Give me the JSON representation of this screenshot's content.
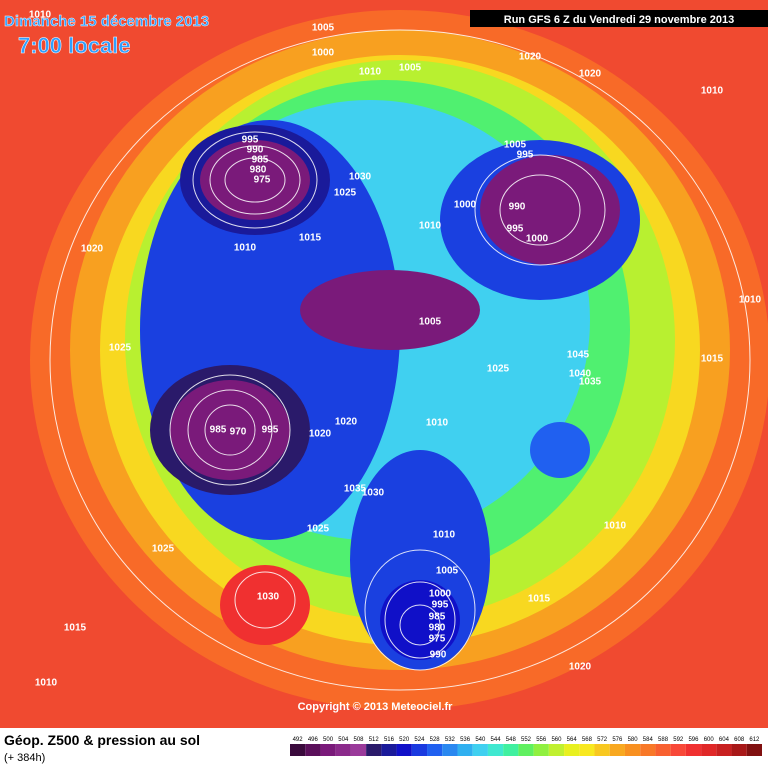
{
  "header": {
    "date": "Dimanche 15 décembre 2013",
    "time": "7:00 locale",
    "run": "Run GFS 6 Z du Vendredi 29 novembre 2013"
  },
  "copyright": "Copyright © 2013 Meteociel.fr",
  "footer": {
    "title": "Géop. Z500 & pression au sol",
    "lead": "(+ 384h)"
  },
  "colorbar": {
    "values": [
      492,
      496,
      500,
      504,
      508,
      512,
      516,
      520,
      524,
      528,
      532,
      536,
      540,
      544,
      548,
      552,
      556,
      560,
      564,
      568,
      572,
      576,
      580,
      584,
      588,
      592,
      596,
      600,
      604,
      608,
      612
    ],
    "colors": [
      "#3a0a3c",
      "#5a0f5a",
      "#7a1a7a",
      "#8b2a8b",
      "#9a3a9a",
      "#2a1a6a",
      "#1a1a9a",
      "#1010c8",
      "#1a3ae0",
      "#2060f0",
      "#2a88f0",
      "#30b0f0",
      "#40d0f0",
      "#40e8d0",
      "#40f0a0",
      "#60f060",
      "#90f040",
      "#c0f030",
      "#e8f020",
      "#f8e820",
      "#f8c820",
      "#f8a820",
      "#f89020",
      "#f87828",
      "#f86030",
      "#f84838",
      "#f03030",
      "#e02828",
      "#c82020",
      "#a81818",
      "#801010"
    ]
  },
  "isobars": [
    1010,
    1005,
    1000,
    1010,
    1005,
    1020,
    1020,
    1010,
    995,
    990,
    985,
    980,
    975,
    1030,
    1025,
    1005,
    995,
    1000,
    990,
    1010,
    995,
    1000,
    1015,
    1010,
    1020,
    1005,
    1010,
    1025,
    1045,
    1015,
    1040,
    1035,
    1025,
    1020,
    985,
    970,
    995,
    1020,
    1010,
    1035,
    1030,
    1025,
    1010,
    1010,
    1025,
    1005,
    1030,
    1000,
    995,
    1015,
    1015,
    985,
    980,
    975,
    990,
    1020,
    1010
  ]
}
